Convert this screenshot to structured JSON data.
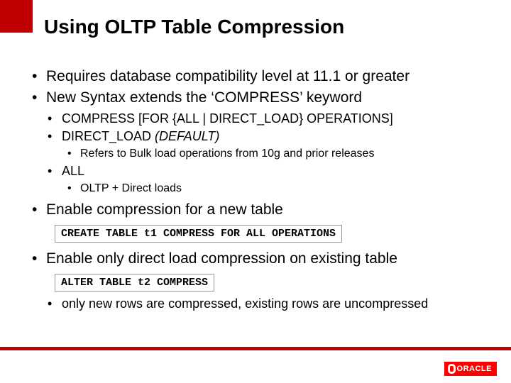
{
  "colors": {
    "brand_red": "#c00000",
    "logo_red": "#ff0000",
    "text": "#000000",
    "bg": "#ffffff",
    "code_border": "#999999"
  },
  "title": "Using OLTP Table Compression",
  "bullets": {
    "a": "Requires database compatibility level at 11.1 or greater",
    "b": "New Syntax extends the ‘COMPRESS’ keyword",
    "b1": "COMPRESS [FOR {ALL | DIRECT_LOAD} OPERATIONS]",
    "b2_pre": "DIRECT_LOAD ",
    "b2_ital": "(DEFAULT)",
    "b2a": "Refers to Bulk load operations from 10g and prior releases",
    "b3": "ALL",
    "b3a": "OLTP + Direct loads",
    "c": "Enable compression for a new table",
    "code1": "CREATE TABLE t1 COMPRESS FOR ALL OPERATIONS",
    "d": "Enable only direct load compression on existing table",
    "code2": "ALTER TABLE t2 COMPRESS",
    "d1": "only new rows are compressed, existing rows are uncompressed"
  },
  "logo_text": "ORACLE"
}
